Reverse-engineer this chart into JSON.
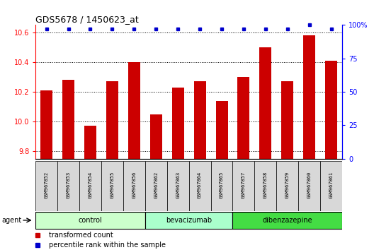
{
  "title": "GDS5678 / 1450623_at",
  "samples": [
    "GSM967852",
    "GSM967853",
    "GSM967854",
    "GSM967855",
    "GSM967856",
    "GSM967862",
    "GSM967863",
    "GSM967864",
    "GSM967865",
    "GSM967857",
    "GSM967858",
    "GSM967859",
    "GSM967860",
    "GSM967861"
  ],
  "bar_values": [
    10.21,
    10.28,
    9.97,
    10.27,
    10.4,
    10.05,
    10.23,
    10.27,
    10.14,
    10.3,
    10.5,
    10.27,
    10.58,
    10.41
  ],
  "percentile_values": [
    97,
    97,
    97,
    97,
    97,
    97,
    97,
    97,
    97,
    97,
    97,
    97,
    100,
    97
  ],
  "bar_color": "#cc0000",
  "percentile_color": "#0000cc",
  "ylim_left": [
    9.75,
    10.65
  ],
  "ylim_right": [
    0,
    100
  ],
  "yticks_left": [
    9.8,
    10.0,
    10.2,
    10.4,
    10.6
  ],
  "yticks_right": [
    0,
    25,
    50,
    75,
    100
  ],
  "groups": [
    {
      "name": "control",
      "start": 0,
      "end": 5,
      "color": "#ccffcc"
    },
    {
      "name": "bevacizumab",
      "start": 5,
      "end": 9,
      "color": "#aaffcc"
    },
    {
      "name": "dibenzazepine",
      "start": 9,
      "end": 14,
      "color": "#44dd44"
    }
  ],
  "agent_label": "agent",
  "legend": [
    {
      "label": "transformed count",
      "color": "#cc0000"
    },
    {
      "label": "percentile rank within the sample",
      "color": "#0000cc"
    }
  ],
  "background_color": "#ffffff"
}
